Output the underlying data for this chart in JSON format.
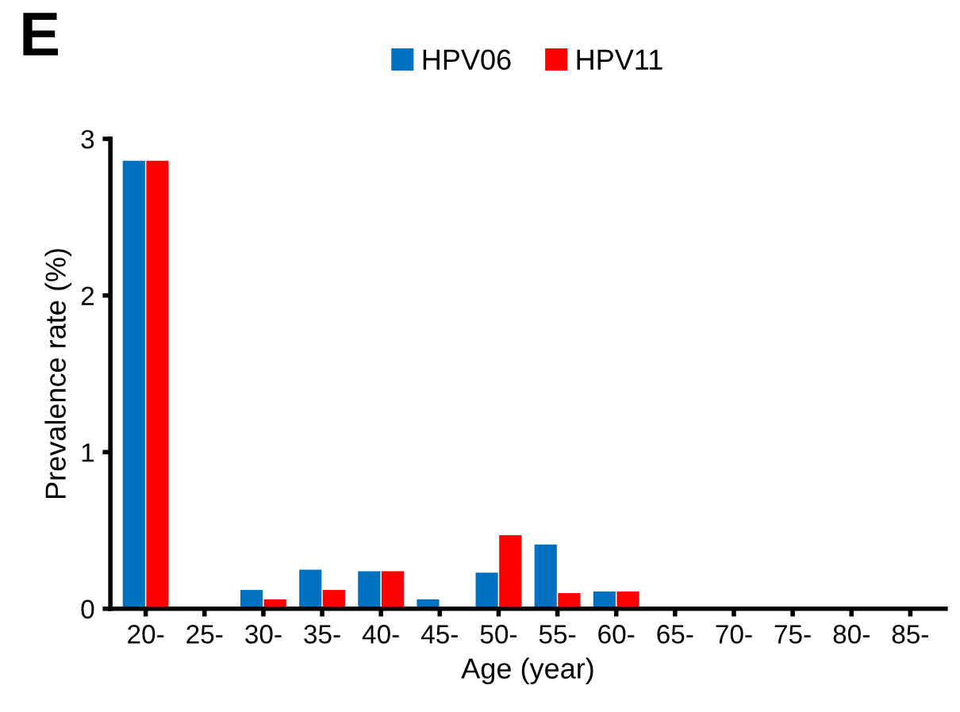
{
  "chart_data": {
    "type": "bar",
    "title": "E",
    "xlabel": "Age (year)",
    "ylabel": "Prevalence rate (%)",
    "categories": [
      "20-",
      "25-",
      "30-",
      "35-",
      "40-",
      "45-",
      "50-",
      "55-",
      "60-",
      "65-",
      "70-",
      "75-",
      "80-",
      "85-"
    ],
    "series": [
      {
        "name": "HPV06",
        "color": "#0070c0",
        "values": [
          2.86,
          0,
          0.12,
          0.25,
          0.24,
          0.06,
          0.23,
          0.41,
          0.11,
          0,
          0,
          0,
          0,
          0
        ]
      },
      {
        "name": "HPV11",
        "color": "#ff0000",
        "values": [
          2.86,
          0,
          0.06,
          0.12,
          0.24,
          0,
          0.47,
          0.1,
          0.11,
          0,
          0,
          0,
          0,
          0
        ]
      }
    ],
    "ylim": [
      0,
      3
    ],
    "yticks": [
      0,
      1,
      2,
      3
    ],
    "grid": false,
    "legend": "top"
  }
}
